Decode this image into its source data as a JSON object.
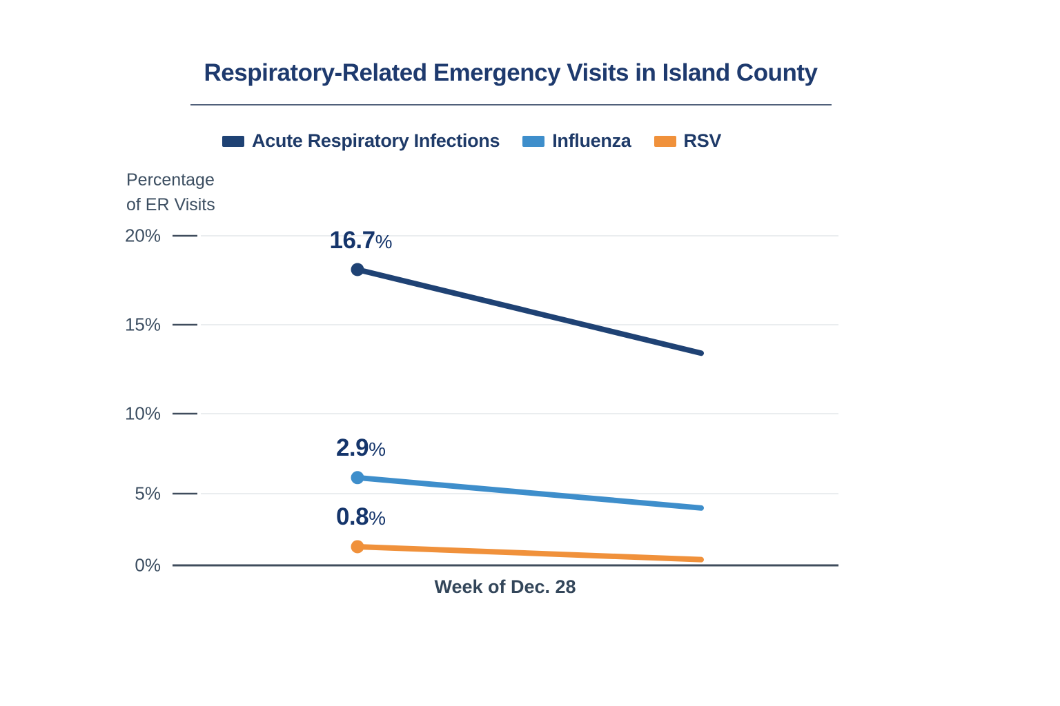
{
  "chart_data": {
    "type": "line",
    "title": "Respiratory-Related Emergency Visits in Island County",
    "ylabel": "Percentage of ER Visits",
    "ylabel_lines": [
      "Percentage",
      "of ER Visits"
    ],
    "xlabel": "Week of Dec. 28",
    "x_categories": [
      "Week of Dec. 28"
    ],
    "ylim": [
      0,
      20
    ],
    "ytick_labels": [
      "20%",
      "15%",
      "10%",
      "5%",
      "0%"
    ],
    "ytick_values": [
      20,
      15,
      10,
      5,
      0
    ],
    "grid": true,
    "legend_position": "top",
    "percent_suffix": "%",
    "series": [
      {
        "name": "Acute Respiratory Infections",
        "color": "#1f4274",
        "value": 16.7,
        "data_label": "16.7",
        "plotted": [
          18.1,
          13.4
        ]
      },
      {
        "name": "Influenza",
        "color": "#3e8ecb",
        "value": 2.9,
        "data_label": "2.9",
        "plotted": [
          6.0,
          4.0
        ]
      },
      {
        "name": "RSV",
        "color": "#f0913b",
        "value": 0.8,
        "data_label": "0.8",
        "plotted": [
          1.3,
          0.4
        ]
      }
    ]
  }
}
